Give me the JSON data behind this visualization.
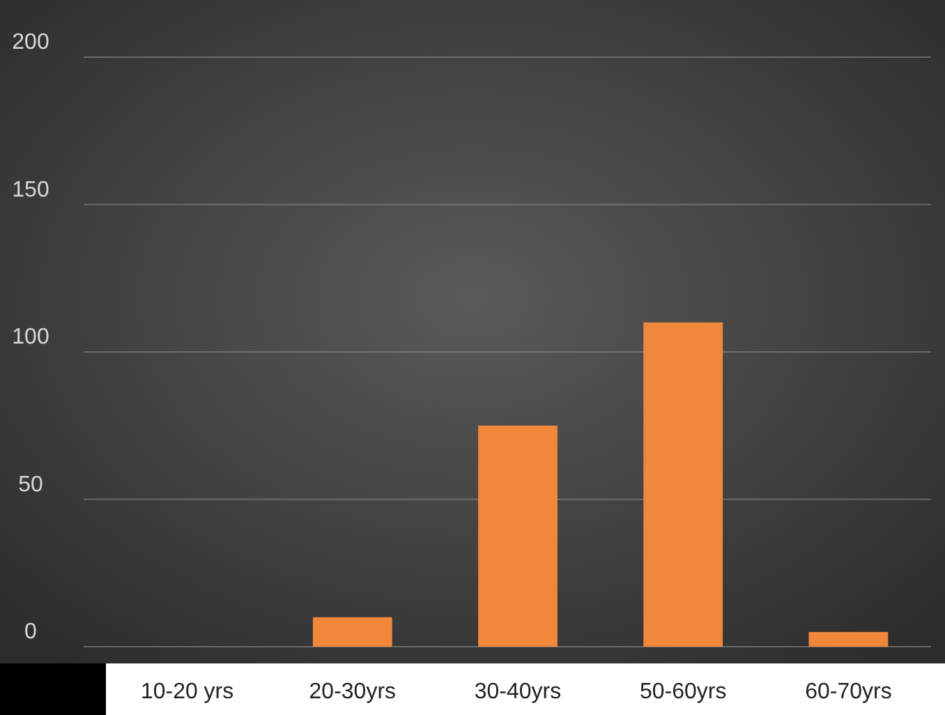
{
  "chart_data": {
    "type": "bar",
    "categories": [
      "10-20 yrs",
      "20-30yrs",
      "30-40yrs",
      "50-60yrs",
      "60-70yrs"
    ],
    "values": [
      0,
      10,
      75,
      110,
      5
    ],
    "color": "#f0873a",
    "ylim": [
      0,
      200
    ],
    "yticks": [
      0,
      50,
      100,
      150,
      200
    ],
    "grid": "y"
  }
}
